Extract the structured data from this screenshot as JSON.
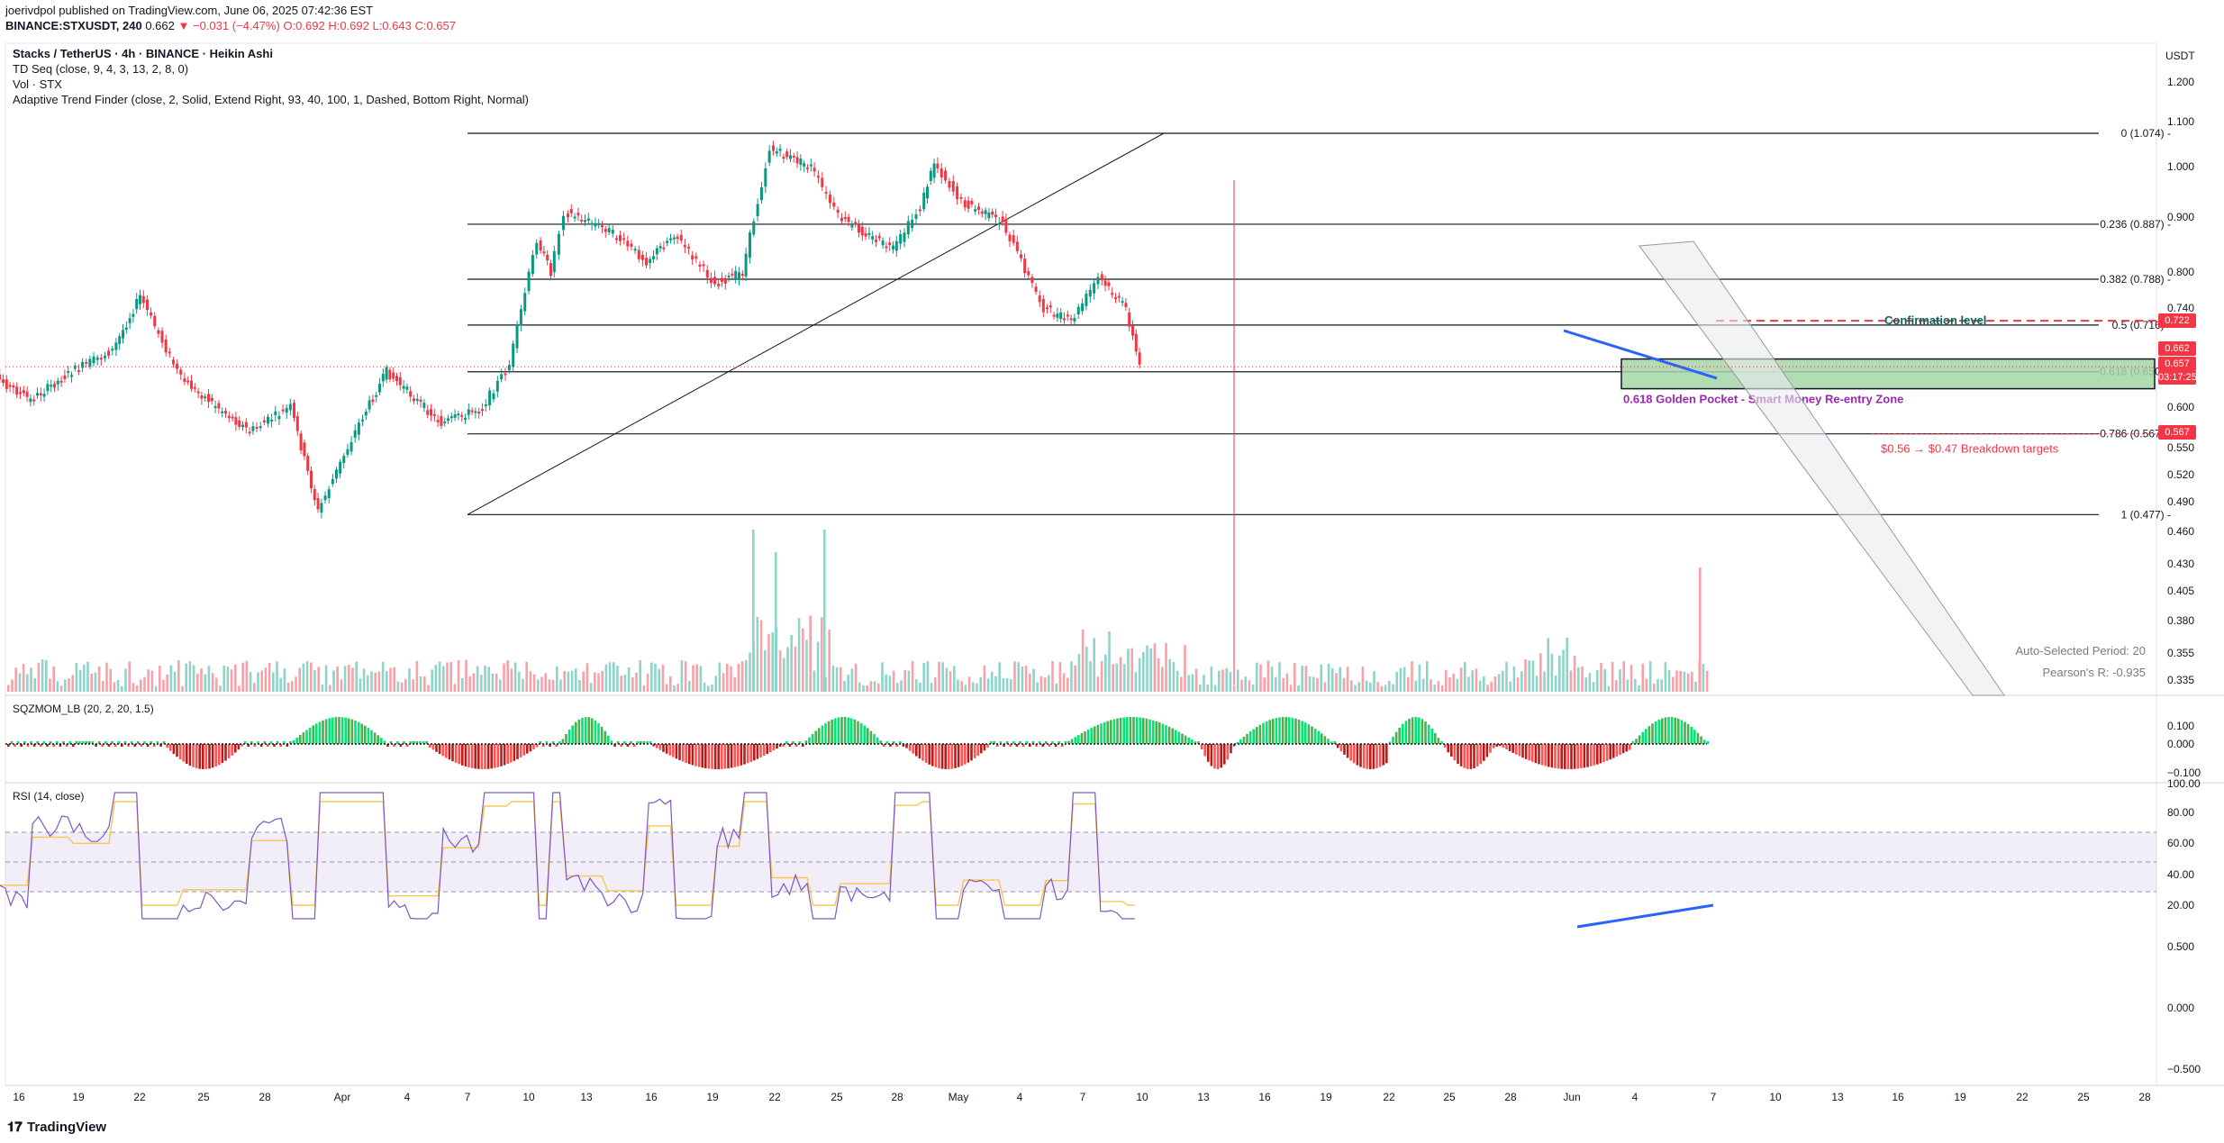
{
  "header": {
    "published": "joerivdpol published on TradingView.com, June 06, 2025 07:42:36 EST",
    "symbol_line": "BINANCE:STXUSDT, 240",
    "last": "0.662",
    "change": "▼ −0.031 (−4.47%)",
    "ohlc": "O:0.692 H:0.692 L:0.643 C:0.657"
  },
  "legend": {
    "title": "Stacks / TetherUS · 4h · BINANCE · Heikin Ashi",
    "indicators": [
      "TD Seq (close, 9, 4, 3, 13, 2, 8, 0)",
      "Vol · STX",
      "Adaptive Trend Finder (close, 2, Solid, Extend Right, 93, 40, 100, 1, Dashed, Bottom Right, Normal)"
    ]
  },
  "currency": "USDT",
  "price_labels": [
    "1.200",
    "1.100",
    "1.000",
    "0.900",
    "0.800",
    "0.740",
    "0.600",
    "0.550",
    "0.520",
    "0.490",
    "0.460",
    "0.430",
    "0.405",
    "0.380",
    "0.355",
    "0.335"
  ],
  "price_tags": {
    "confirm": "0.722",
    "last": "0.662",
    "close": "0.657",
    "timer": "03:17:25",
    "fib786": "0.567"
  },
  "sqz_labels": [
    "0.100",
    "0.000",
    "−0.100"
  ],
  "rsi_labels": [
    "100.00",
    "80.00",
    "60.00",
    "40.00",
    "20.00",
    "0.500",
    "0.000",
    "−0.500"
  ],
  "x_labels": [
    "16",
    "19",
    "22",
    "25",
    "28",
    "Apr",
    "4",
    "7",
    "10",
    "13",
    "16",
    "19",
    "22",
    "25",
    "28",
    "May",
    "4",
    "7",
    "10",
    "13",
    "16",
    "19",
    "22",
    "25",
    "28",
    "Jun",
    "4",
    "7",
    "10",
    "13",
    "16",
    "19",
    "22",
    "25",
    "28"
  ],
  "annotations": {
    "confirmation": "Confirmation level",
    "golden": "0.618 Golden Pocket - Smart Money Re-entry Zone",
    "targets": "$0.56 → $0.47  Breakdown targets",
    "period": "Auto-Selected Period: 20",
    "pearson": "Pearson's R: -0.935"
  },
  "panes": {
    "sqz": "SQZMOM_LB (20, 2, 20, 1.5)",
    "rsi": "RSI (14, close)"
  },
  "brand": "TradingView",
  "colors": {
    "up": "#089981",
    "down": "#f23645",
    "fib": "#131722",
    "zone": "#a5d6a7",
    "purple": "#7e57c2",
    "blue": "#2962ff"
  },
  "chart_data": {
    "type": "line",
    "title": "Stacks / TetherUS · 4h · BINANCE · Heikin Ashi",
    "ylabel": "USDT",
    "ylim": [
      0.32,
      1.22
    ],
    "fib_levels": [
      {
        "label": "0 (1.074)",
        "value": 1.074
      },
      {
        "label": "0.236 (0.887)",
        "value": 0.887
      },
      {
        "label": "0.382 (0.788)",
        "value": 0.788
      },
      {
        "label": "0.5 (0.716)",
        "value": 0.716
      },
      {
        "label": "0.618 (0.650)",
        "value": 0.65
      },
      {
        "label": "0.786 (0.567)",
        "value": 0.567
      },
      {
        "label": "1 (0.477)",
        "value": 0.477
      }
    ],
    "price_path": [
      {
        "x": "Mar 14",
        "y": 0.66
      },
      {
        "x": "Mar 18",
        "y": 0.61
      },
      {
        "x": "Mar 21",
        "y": 0.65
      },
      {
        "x": "Mar 24",
        "y": 0.68
      },
      {
        "x": "Mar 26",
        "y": 0.76
      },
      {
        "x": "Mar 29",
        "y": 0.64
      },
      {
        "x": "Apr 2",
        "y": 0.57
      },
      {
        "x": "Apr 5",
        "y": 0.6
      },
      {
        "x": "Apr 7",
        "y": 0.48
      },
      {
        "x": "Apr 10",
        "y": 0.58
      },
      {
        "x": "Apr 12",
        "y": 0.65
      },
      {
        "x": "Apr 16",
        "y": 0.58
      },
      {
        "x": "Apr 19",
        "y": 0.6
      },
      {
        "x": "Apr 21",
        "y": 0.66
      },
      {
        "x": "Apr 23",
        "y": 0.86
      },
      {
        "x": "Apr 24",
        "y": 0.8
      },
      {
        "x": "Apr 25",
        "y": 0.91
      },
      {
        "x": "Apr 28",
        "y": 0.88
      },
      {
        "x": "May 1",
        "y": 0.82
      },
      {
        "x": "May 3",
        "y": 0.87
      },
      {
        "x": "May 6",
        "y": 0.78
      },
      {
        "x": "May 8",
        "y": 0.8
      },
      {
        "x": "May 10",
        "y": 1.04
      },
      {
        "x": "May 13",
        "y": 1.0
      },
      {
        "x": "May 15",
        "y": 0.9
      },
      {
        "x": "May 19",
        "y": 0.84
      },
      {
        "x": "May 21",
        "y": 0.92
      },
      {
        "x": "May 22",
        "y": 1.01
      },
      {
        "x": "May 24",
        "y": 0.93
      },
      {
        "x": "May 27",
        "y": 0.89
      },
      {
        "x": "May 30",
        "y": 0.74
      },
      {
        "x": "Jun 1",
        "y": 0.72
      },
      {
        "x": "Jun 3",
        "y": 0.79
      },
      {
        "x": "Jun 5",
        "y": 0.74
      },
      {
        "x": "Jun 6",
        "y": 0.657
      }
    ],
    "zone": {
      "from": 0.626,
      "to": 0.668,
      "label": "0.618 Golden Pocket - Smart Money Re-entry Zone"
    },
    "confirmation_level": 0.722,
    "rsi_bands": [
      30,
      50,
      70
    ]
  }
}
